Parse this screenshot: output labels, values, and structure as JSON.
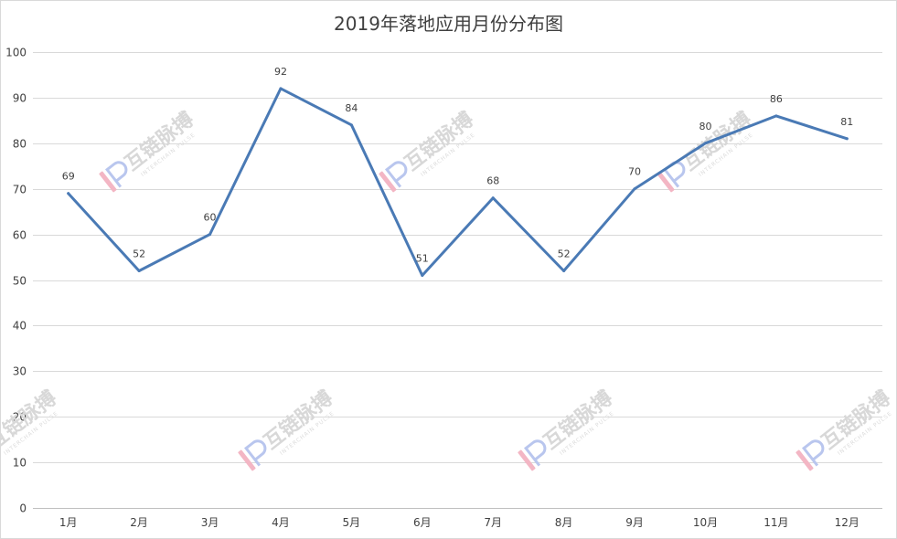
{
  "chart_data": {
    "type": "line",
    "title": "2019年落地应用月份分布图",
    "categories": [
      "1月",
      "2月",
      "3月",
      "4月",
      "5月",
      "6月",
      "7月",
      "8月",
      "9月",
      "10月",
      "11月",
      "12月"
    ],
    "series": [
      {
        "values": [
          69,
          52,
          60,
          92,
          84,
          51,
          68,
          52,
          70,
          80,
          86,
          81
        ],
        "color": "#4a7ab5"
      }
    ],
    "ylim": [
      0,
      100
    ],
    "yticks": [
      0,
      10,
      20,
      30,
      40,
      50,
      60,
      70,
      80,
      90,
      100
    ],
    "grid": true,
    "data_labels": true,
    "legend": "none"
  },
  "watermark": {
    "text": "互链脉搏",
    "subtext": "INTERCHAIN PULSE",
    "logo_icon": "ip-logo-icon",
    "colors": [
      "#f3b6c4",
      "#b9c6ee"
    ]
  }
}
